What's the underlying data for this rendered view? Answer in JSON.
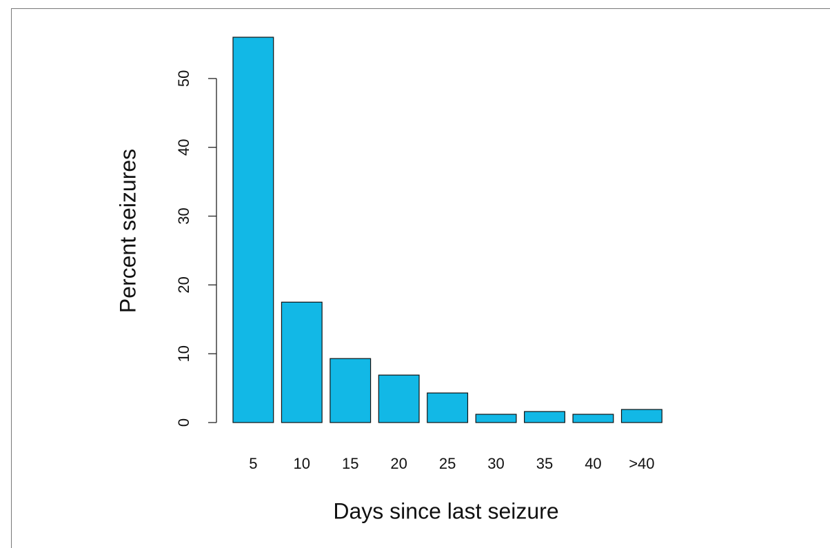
{
  "chart_data": {
    "type": "bar",
    "xlabel": "Days since last seizure",
    "ylabel": "Percent seizures",
    "categories": [
      "5",
      "10",
      "15",
      "20",
      "25",
      "30",
      "35",
      "40",
      ">40"
    ],
    "values": [
      56.0,
      17.5,
      9.3,
      6.9,
      4.3,
      1.2,
      1.6,
      1.2,
      1.9
    ],
    "color": "#12b8e6",
    "ylim": [
      0,
      56
    ],
    "yticks": [
      0,
      10,
      20,
      30,
      40,
      50
    ],
    "grid": false
  }
}
